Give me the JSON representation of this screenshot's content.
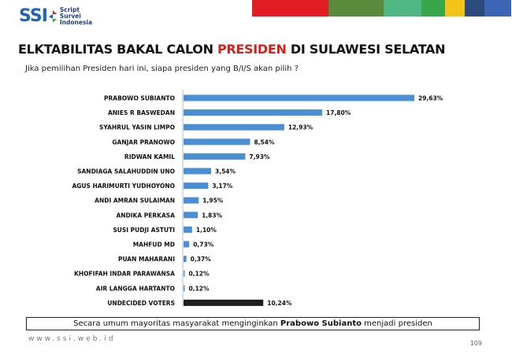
{
  "logo": {
    "brand": "SSI",
    "sub_line1": "Script",
    "sub_line2": "Survei",
    "sub_line3": "Indonesia"
  },
  "header_stripes": [
    "#e11c22",
    "#f09422",
    "#5a8b3c",
    "#5a8b3c",
    "#4fb783",
    "#3aa64b",
    "#f2c318",
    "#2c4a7c",
    "#3c66b5"
  ],
  "title": {
    "part1": "ELKTABILITAS  BAKAL CALON ",
    "accent": "PRESIDEN",
    "part2": " DI SULAWESI SELATAN"
  },
  "subtitle": "Jika pemilihan Presiden hari ini, siapa presiden yang B/I/S akan pilih ?",
  "chart_data": {
    "type": "bar",
    "orientation": "horizontal",
    "categories": [
      "PRABOWO SUBIANTO",
      "ANIES R BASWEDAN",
      "SYAHRUL YASIN LIMPO",
      "GANJAR PRANOWO",
      "RIDWAN KAMIL",
      "SANDIAGA SALAHUDDIN UNO",
      "AGUS HARIMURTI YUDHOYONO",
      "ANDI AMRAN SULAIMAN",
      "ANDIKA PERKASA",
      "SUSI PUDJI ASTUTI",
      "MAHFUD MD",
      "PUAN MAHARANI",
      "KHOFIFAH INDAR PARAWANSA",
      "AIR LANGGA HARTANTO",
      "UNDECIDED VOTERS"
    ],
    "values": [
      29.63,
      17.8,
      12.93,
      8.54,
      7.93,
      3.54,
      3.17,
      1.95,
      1.83,
      1.1,
      0.73,
      0.37,
      0.12,
      0.12,
      10.24
    ],
    "value_labels": [
      "29,63%",
      "17,80%",
      "12,93%",
      "8,54%",
      "7,93%",
      "3,54%",
      "3,17%",
      "1,95%",
      "1,83%",
      "1,10%",
      "0,73%",
      "0,37%",
      "0,12%",
      "0,12%",
      "10,24%"
    ],
    "colors": {
      "default": "#4a8fd4",
      "undecided": "#1f1f1f"
    },
    "highlight_category": "UNDECIDED VOTERS",
    "xlim": [
      0,
      32
    ],
    "grid": false,
    "legend": "none"
  },
  "conclusion": {
    "before": "Secara umum mayoritas masyarakat menginginkan ",
    "bold": "Prabowo Subianto",
    "after": " menjadi presiden"
  },
  "footer_url": "www.ssi.web.id",
  "page_number": "109"
}
